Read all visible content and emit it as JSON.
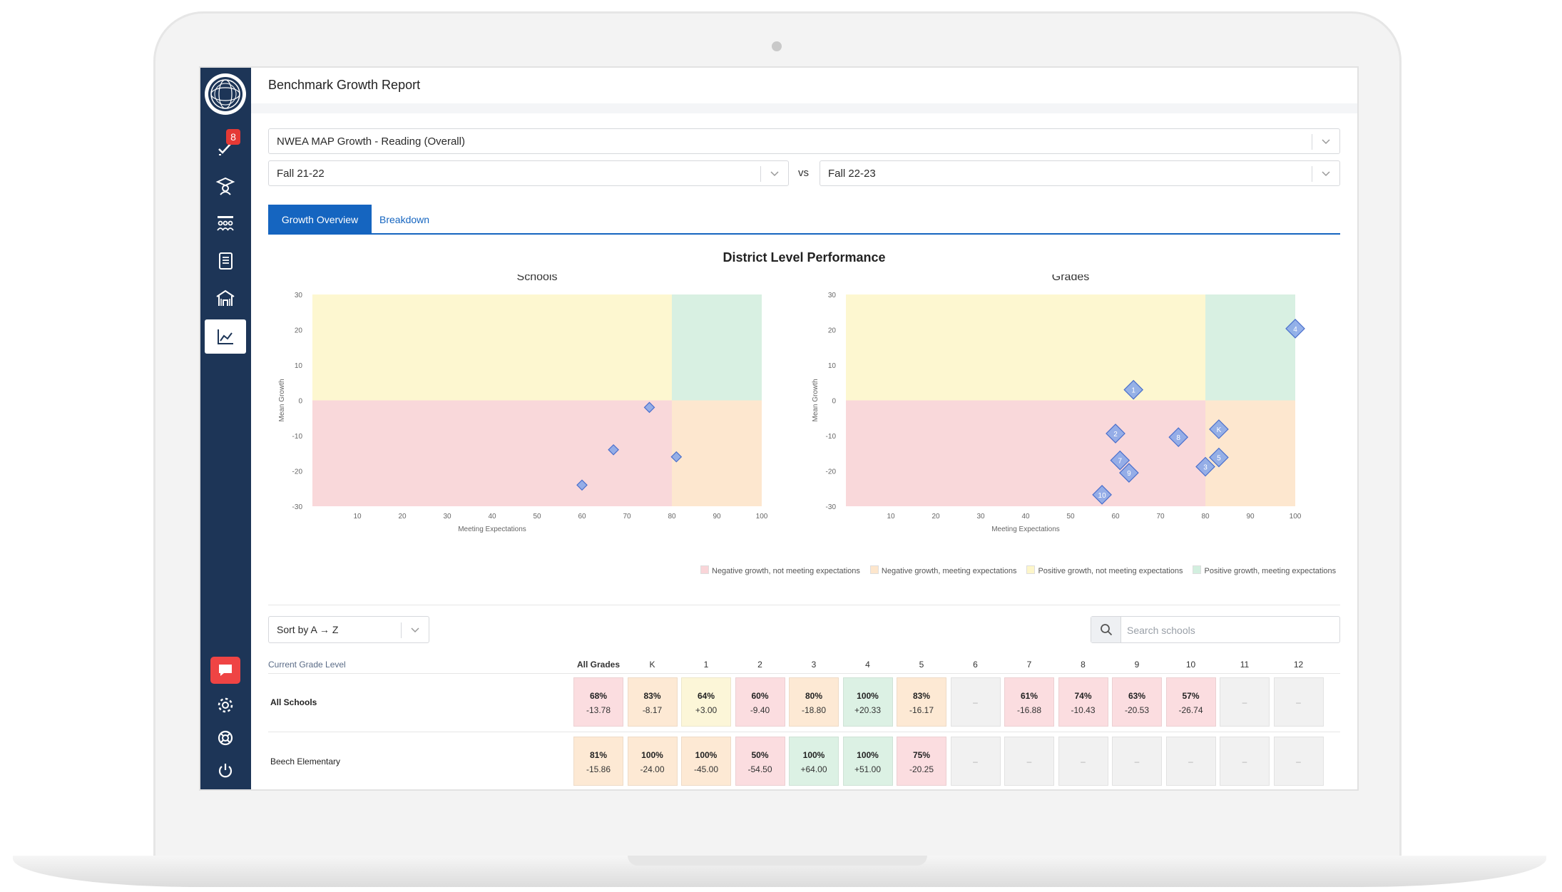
{
  "app": {
    "title": "Benchmark Growth Report"
  },
  "sidebar": {
    "badge_count": "8",
    "items": [
      {
        "name": "tasks"
      },
      {
        "name": "students"
      },
      {
        "name": "classes"
      },
      {
        "name": "assessments"
      },
      {
        "name": "schools"
      },
      {
        "name": "reports"
      }
    ]
  },
  "filters": {
    "assessment": "NWEA MAP Growth - Reading (Overall)",
    "from_term": "Fall 21-22",
    "vs_label": "vs",
    "to_term": "Fall 22-23"
  },
  "tabs": [
    {
      "label": "Growth Overview",
      "active": true
    },
    {
      "label": "Breakdown",
      "active": false
    }
  ],
  "district_title": "District Level Performance",
  "chart_data": [
    {
      "type": "scatter",
      "title": "Schools",
      "xlabel": "Meeting Expectations",
      "ylabel": "Mean Growth",
      "xlim": [
        0,
        100
      ],
      "ylim": [
        -30,
        30
      ],
      "xticks": [
        "10",
        "20",
        "30",
        "40",
        "50",
        "60",
        "70",
        "80",
        "90",
        "100"
      ],
      "yticks": [
        "30",
        "20",
        "10",
        "0",
        "-10",
        "-20",
        "-30"
      ],
      "quadrant_split": {
        "x": 80,
        "y": 0
      },
      "points": [
        {
          "x": 75,
          "y": -2,
          "label": ""
        },
        {
          "x": 67,
          "y": -14,
          "label": ""
        },
        {
          "x": 81,
          "y": -16,
          "label": ""
        },
        {
          "x": 60,
          "y": -24,
          "label": ""
        }
      ]
    },
    {
      "type": "scatter",
      "title": "Grades",
      "xlabel": "Meeting Expectations",
      "ylabel": "Mean Growth",
      "xlim": [
        0,
        100
      ],
      "ylim": [
        -30,
        30
      ],
      "xticks": [
        "10",
        "20",
        "30",
        "40",
        "50",
        "60",
        "70",
        "80",
        "90",
        "100"
      ],
      "yticks": [
        "30",
        "20",
        "10",
        "0",
        "-10",
        "-20",
        "-30"
      ],
      "quadrant_split": {
        "x": 80,
        "y": 0
      },
      "points": [
        {
          "x": 100,
          "y": 20.33,
          "label": "4"
        },
        {
          "x": 64,
          "y": 3,
          "label": "1"
        },
        {
          "x": 60,
          "y": -9.4,
          "label": "2"
        },
        {
          "x": 74,
          "y": -10.43,
          "label": "8"
        },
        {
          "x": 83,
          "y": -8.17,
          "label": "K"
        },
        {
          "x": 61,
          "y": -17,
          "label": "7"
        },
        {
          "x": 63,
          "y": -20.53,
          "label": "9"
        },
        {
          "x": 83,
          "y": -16.17,
          "label": "5"
        },
        {
          "x": 80,
          "y": -18.8,
          "label": "3"
        },
        {
          "x": 57,
          "y": -26.74,
          "label": "10"
        }
      ]
    }
  ],
  "legend": [
    {
      "label": "Negative growth, not meeting expectations",
      "color": "#f9d5d8"
    },
    {
      "label": "Negative growth, meeting expectations",
      "color": "#fde6cc"
    },
    {
      "label": "Positive growth, not meeting expectations",
      "color": "#fdf6c9"
    },
    {
      "label": "Positive growth, meeting expectations",
      "color": "#d2efdf"
    }
  ],
  "quadrant_colors": {
    "neg_not_meeting": "#f9d8da",
    "neg_meeting": "#fde7cf",
    "pos_not_meeting": "#fdf7d0",
    "pos_meeting": "#d8f0e2",
    "point": "#8aa8e8",
    "point_stroke": "#4a6fcc"
  },
  "controls": {
    "sort_label": "Sort by A → Z",
    "search_placeholder": "Search schools"
  },
  "table": {
    "first_header": "Current Grade Level",
    "columns": [
      "All Grades",
      "K",
      "1",
      "2",
      "3",
      "4",
      "5",
      "6",
      "7",
      "8",
      "9",
      "10",
      "11",
      "12"
    ],
    "rows": [
      {
        "name": "All Schools",
        "bold": true,
        "cells": [
          {
            "pct": "68%",
            "diff": "-13.78",
            "tone": "red"
          },
          {
            "pct": "83%",
            "diff": "-8.17",
            "tone": "peach"
          },
          {
            "pct": "64%",
            "diff": "+3.00",
            "tone": "yellow"
          },
          {
            "pct": "60%",
            "diff": "-9.40",
            "tone": "red"
          },
          {
            "pct": "80%",
            "diff": "-18.80",
            "tone": "peach"
          },
          {
            "pct": "100%",
            "diff": "+20.33",
            "tone": "green"
          },
          {
            "pct": "83%",
            "diff": "-16.17",
            "tone": "peach"
          },
          {
            "pct": "",
            "diff": "",
            "tone": "gray"
          },
          {
            "pct": "61%",
            "diff": "-16.88",
            "tone": "red"
          },
          {
            "pct": "74%",
            "diff": "-10.43",
            "tone": "red"
          },
          {
            "pct": "63%",
            "diff": "-20.53",
            "tone": "red"
          },
          {
            "pct": "57%",
            "diff": "-26.74",
            "tone": "red"
          },
          {
            "pct": "",
            "diff": "",
            "tone": "gray"
          },
          {
            "pct": "",
            "diff": "",
            "tone": "gray"
          }
        ]
      },
      {
        "name": "Beech Elementary",
        "bold": false,
        "cells": [
          {
            "pct": "81%",
            "diff": "-15.86",
            "tone": "peach"
          },
          {
            "pct": "100%",
            "diff": "-24.00",
            "tone": "peach"
          },
          {
            "pct": "100%",
            "diff": "-45.00",
            "tone": "peach"
          },
          {
            "pct": "50%",
            "diff": "-54.50",
            "tone": "red"
          },
          {
            "pct": "100%",
            "diff": "+64.00",
            "tone": "green"
          },
          {
            "pct": "100%",
            "diff": "+51.00",
            "tone": "green"
          },
          {
            "pct": "75%",
            "diff": "-20.25",
            "tone": "red"
          },
          {
            "pct": "",
            "diff": "",
            "tone": "gray"
          },
          {
            "pct": "",
            "diff": "",
            "tone": "gray"
          },
          {
            "pct": "",
            "diff": "",
            "tone": "gray"
          },
          {
            "pct": "",
            "diff": "",
            "tone": "gray"
          },
          {
            "pct": "",
            "diff": "",
            "tone": "gray"
          },
          {
            "pct": "",
            "diff": "",
            "tone": "gray"
          },
          {
            "pct": "",
            "diff": "",
            "tone": "gray"
          }
        ]
      }
    ],
    "empty_marker": "–"
  }
}
